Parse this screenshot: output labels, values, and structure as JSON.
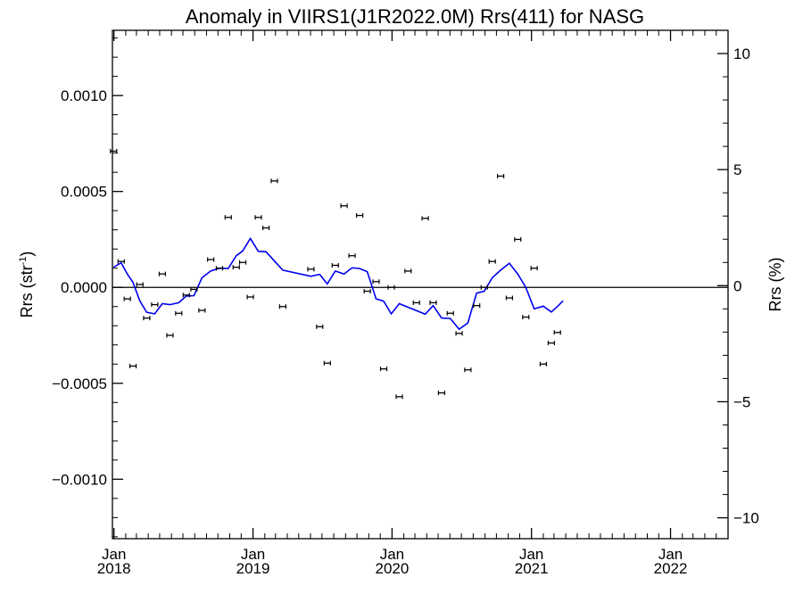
{
  "chart_data": {
    "type": "scatter",
    "title": "Anomaly in VIIRS1(J1R2022.0M) Rrs(411) for NASG",
    "ylabel_left": "Rrs (str",
    "ylabel_left_superscript": "-1",
    "ylabel_left_suffix": ")",
    "ylabel_right": "Rrs (%)",
    "xlim": [
      "2017-12-28",
      "2022-06-01"
    ],
    "ylim": [
      -0.00131,
      0.00134
    ],
    "ylim_right": [
      -10.9,
      11.0
    ],
    "x_ticks": [
      {
        "date": "2018-01-01",
        "month": "Jan",
        "year": "2018"
      },
      {
        "date": "2019-01-01",
        "month": "Jan",
        "year": "2019"
      },
      {
        "date": "2020-01-01",
        "month": "Jan",
        "year": "2020"
      },
      {
        "date": "2021-01-01",
        "month": "Jan",
        "year": "2021"
      },
      {
        "date": "2022-01-01",
        "month": "Jan",
        "year": "2022"
      }
    ],
    "y_ticks_left": [
      {
        "value": 0.001,
        "label": "0.0010"
      },
      {
        "value": 0.0005,
        "label": "0.0005"
      },
      {
        "value": 0.0,
        "label": "0.0000"
      },
      {
        "value": -0.0005,
        "label": "−0.0005"
      },
      {
        "value": -0.001,
        "label": "−0.0010"
      }
    ],
    "y_ticks_right": [
      {
        "value": 10,
        "label": "10"
      },
      {
        "value": 5,
        "label": "5"
      },
      {
        "value": 0,
        "label": "0"
      },
      {
        "value": -5,
        "label": "−5"
      },
      {
        "value": -10,
        "label": "−10"
      }
    ],
    "zero_line": true,
    "grid": false,
    "colors": {
      "points": "#000000",
      "line": "#0000ee",
      "axes": "#000000"
    },
    "series": [
      {
        "type": "scatter_errorbar",
        "points": [
          {
            "x": "2017-12-31",
            "y": 0.00071
          },
          {
            "x": "2018-01-20",
            "y": 0.000135
          },
          {
            "x": "2018-02-05",
            "y": -6e-05
          },
          {
            "x": "2018-02-20",
            "y": -0.00041
          },
          {
            "x": "2018-03-10",
            "y": 1.5e-05
          },
          {
            "x": "2018-03-28",
            "y": -0.00016
          },
          {
            "x": "2018-04-18",
            "y": -9e-05
          },
          {
            "x": "2018-05-08",
            "y": 7e-05
          },
          {
            "x": "2018-05-28",
            "y": -0.00025
          },
          {
            "x": "2018-06-20",
            "y": -0.000135
          },
          {
            "x": "2018-07-10",
            "y": -4e-05
          },
          {
            "x": "2018-07-30",
            "y": -1e-05
          },
          {
            "x": "2018-08-20",
            "y": -0.00012
          },
          {
            "x": "2018-09-12",
            "y": 0.000145
          },
          {
            "x": "2018-10-05",
            "y": 0.0001
          },
          {
            "x": "2018-10-28",
            "y": 0.000365
          },
          {
            "x": "2018-11-18",
            "y": 0.000105
          },
          {
            "x": "2018-12-05",
            "y": 0.00013
          },
          {
            "x": "2018-12-25",
            "y": -5e-05
          },
          {
            "x": "2019-01-15",
            "y": 0.000365
          },
          {
            "x": "2019-02-04",
            "y": 0.00031
          },
          {
            "x": "2019-02-26",
            "y": 0.000555
          },
          {
            "x": "2019-03-20",
            "y": -0.0001
          },
          {
            "x": "2019-06-02",
            "y": 9.5e-05
          },
          {
            "x": "2019-06-25",
            "y": -0.000205
          },
          {
            "x": "2019-07-15",
            "y": -0.000395
          },
          {
            "x": "2019-08-05",
            "y": 0.000115
          },
          {
            "x": "2019-08-28",
            "y": 0.000425
          },
          {
            "x": "2019-09-18",
            "y": 0.000165
          },
          {
            "x": "2019-10-08",
            "y": 0.000375
          },
          {
            "x": "2019-10-28",
            "y": -2e-05
          },
          {
            "x": "2019-11-20",
            "y": 3e-05
          },
          {
            "x": "2019-12-10",
            "y": -0.000425
          },
          {
            "x": "2019-12-30",
            "y": 0.0
          },
          {
            "x": "2020-01-20",
            "y": -0.00057
          },
          {
            "x": "2020-02-12",
            "y": 8.5e-05
          },
          {
            "x": "2020-03-05",
            "y": -8e-05
          },
          {
            "x": "2020-03-28",
            "y": 0.00036
          },
          {
            "x": "2020-04-18",
            "y": -8e-05
          },
          {
            "x": "2020-05-10",
            "y": -0.00055
          },
          {
            "x": "2020-06-02",
            "y": -0.000135
          },
          {
            "x": "2020-06-25",
            "y": -0.00024
          },
          {
            "x": "2020-07-18",
            "y": -0.00043
          },
          {
            "x": "2020-08-10",
            "y": -9.5e-05
          },
          {
            "x": "2020-08-30",
            "y": 0.0
          },
          {
            "x": "2020-09-20",
            "y": 0.000135
          },
          {
            "x": "2020-10-12",
            "y": 0.00058
          },
          {
            "x": "2020-11-04",
            "y": -5.5e-05
          },
          {
            "x": "2020-11-26",
            "y": 0.00025
          },
          {
            "x": "2020-12-17",
            "y": -0.000155
          },
          {
            "x": "2021-01-08",
            "y": 0.0001
          },
          {
            "x": "2021-02-01",
            "y": -0.0004
          },
          {
            "x": "2021-02-22",
            "y": -0.00029
          },
          {
            "x": "2021-03-10",
            "y": -0.000235
          }
        ]
      },
      {
        "type": "line",
        "points": [
          {
            "x": "2017-12-31",
            "y": 0.000105
          },
          {
            "x": "2018-01-20",
            "y": 0.000128
          },
          {
            "x": "2018-02-05",
            "y": 7e-05
          },
          {
            "x": "2018-02-20",
            "y": 2.5e-05
          },
          {
            "x": "2018-03-10",
            "y": -7e-05
          },
          {
            "x": "2018-03-28",
            "y": -0.00013
          },
          {
            "x": "2018-04-18",
            "y": -0.000138
          },
          {
            "x": "2018-05-08",
            "y": -8.5e-05
          },
          {
            "x": "2018-05-28",
            "y": -9e-05
          },
          {
            "x": "2018-06-20",
            "y": -8e-05
          },
          {
            "x": "2018-07-10",
            "y": -4.5e-05
          },
          {
            "x": "2018-07-30",
            "y": -4.3e-05
          },
          {
            "x": "2018-08-20",
            "y": 5e-05
          },
          {
            "x": "2018-09-12",
            "y": 8.5e-05
          },
          {
            "x": "2018-10-05",
            "y": 0.0001
          },
          {
            "x": "2018-10-28",
            "y": 9.8e-05
          },
          {
            "x": "2018-11-18",
            "y": 0.000165
          },
          {
            "x": "2018-12-05",
            "y": 0.00019
          },
          {
            "x": "2018-12-25",
            "y": 0.000255
          },
          {
            "x": "2019-01-15",
            "y": 0.000188
          },
          {
            "x": "2019-02-04",
            "y": 0.000186
          },
          {
            "x": "2019-03-20",
            "y": 9e-05
          },
          {
            "x": "2019-06-02",
            "y": 5.8e-05
          },
          {
            "x": "2019-06-25",
            "y": 6.8e-05
          },
          {
            "x": "2019-07-15",
            "y": 1.8e-05
          },
          {
            "x": "2019-08-05",
            "y": 8.5e-05
          },
          {
            "x": "2019-08-28",
            "y": 7e-05
          },
          {
            "x": "2019-09-18",
            "y": 0.000102
          },
          {
            "x": "2019-10-08",
            "y": 9.8e-05
          },
          {
            "x": "2019-10-28",
            "y": 8.2e-05
          },
          {
            "x": "2019-11-20",
            "y": -6e-05
          },
          {
            "x": "2019-12-10",
            "y": -7.2e-05
          },
          {
            "x": "2019-12-30",
            "y": -0.000138
          },
          {
            "x": "2020-01-20",
            "y": -8.5e-05
          },
          {
            "x": "2020-03-28",
            "y": -0.00014
          },
          {
            "x": "2020-04-18",
            "y": -9.5e-05
          },
          {
            "x": "2020-05-10",
            "y": -0.00016
          },
          {
            "x": "2020-06-02",
            "y": -0.000162
          },
          {
            "x": "2020-06-25",
            "y": -0.000218
          },
          {
            "x": "2020-07-18",
            "y": -0.000185
          },
          {
            "x": "2020-08-10",
            "y": -3e-05
          },
          {
            "x": "2020-08-30",
            "y": -2e-05
          },
          {
            "x": "2020-09-20",
            "y": 5e-05
          },
          {
            "x": "2020-10-12",
            "y": 9e-05
          },
          {
            "x": "2020-11-04",
            "y": 0.000125
          },
          {
            "x": "2020-11-26",
            "y": 7e-05
          },
          {
            "x": "2020-12-17",
            "y": 0.0
          },
          {
            "x": "2021-01-08",
            "y": -0.000112
          },
          {
            "x": "2021-02-01",
            "y": -9.8e-05
          },
          {
            "x": "2021-02-22",
            "y": -0.000128
          },
          {
            "x": "2021-03-10",
            "y": -0.0001
          },
          {
            "x": "2021-03-25",
            "y": -7e-05
          }
        ]
      }
    ]
  }
}
